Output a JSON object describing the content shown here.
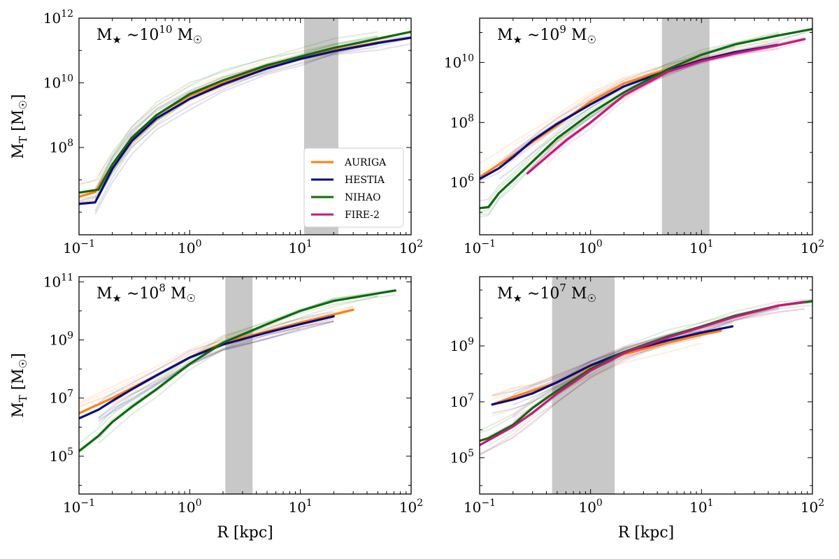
{
  "chart_data": [
    {
      "type": "line",
      "panel": "top-left",
      "title_prefix": "M",
      "title_exp": "10",
      "xlabel": "",
      "ylabel": "M",
      "ylabel_sub": "T",
      "ylabel_unit": "[M",
      "xscale": "log",
      "yscale": "log",
      "xlim": [
        0.1,
        100
      ],
      "ylim": [
        200000,
        1000000000000
      ],
      "x_ticks": [
        {
          "base": "10",
          "exp": "−1",
          "value": 0.1
        },
        {
          "base": "10",
          "exp": "0",
          "value": 1
        },
        {
          "base": "10",
          "exp": "1",
          "value": 10
        },
        {
          "base": "10",
          "exp": "2",
          "value": 100
        }
      ],
      "y_ticks": [
        {
          "base": "10",
          "exp": "8",
          "value": 100000000
        },
        {
          "base": "10",
          "exp": "10",
          "value": 10000000000
        },
        {
          "base": "10",
          "exp": "12",
          "value": 1000000000000
        }
      ],
      "band": [
        10.8,
        22
      ],
      "legend": {
        "position": "lower-right",
        "entries": [
          "AURIGA",
          "HESTIA",
          "NIHAO",
          "FIRE-2"
        ]
      },
      "series": [
        {
          "name": "AURIGA",
          "color": "#ff7f0e",
          "x": [
            0.1,
            0.14,
            0.2,
            0.3,
            0.5,
            1,
            2,
            5,
            10,
            20,
            50,
            100
          ],
          "y": [
            3000000,
            4200000,
            30000000,
            200000000,
            1000000000,
            4000000000,
            10000000000,
            32000000000,
            60000000000,
            100000000000,
            180000000000,
            250000000000
          ]
        },
        {
          "name": "HESTIA",
          "color": "#0a0a82",
          "x": [
            0.1,
            0.14,
            0.2,
            0.3,
            0.5,
            1,
            2,
            5,
            10,
            20,
            50,
            100
          ],
          "y": [
            1800000,
            2000000,
            22000000,
            160000000,
            800000000,
            3200000000,
            9000000000,
            28000000000,
            55000000000,
            95000000000,
            170000000000,
            250000000000
          ]
        },
        {
          "name": "NIHAO",
          "color": "#0b6b0b",
          "x": [
            0.1,
            0.15,
            0.2,
            0.3,
            0.5,
            1,
            2,
            5,
            10,
            20,
            50,
            100
          ],
          "y": [
            4000000,
            5000000,
            30000000,
            200000000,
            1000000000,
            4500000000,
            12000000000,
            35000000000,
            65000000000,
            120000000000,
            230000000000,
            380000000000
          ]
        }
      ]
    },
    {
      "type": "line",
      "panel": "top-right",
      "title_prefix": "M",
      "title_exp": "9",
      "xlabel": "",
      "ylabel": "",
      "xscale": "log",
      "yscale": "log",
      "xlim": [
        0.1,
        100
      ],
      "ylim": [
        18000,
        300000000000
      ],
      "x_ticks": [
        {
          "base": "10",
          "exp": "−1",
          "value": 0.1
        },
        {
          "base": "10",
          "exp": "0",
          "value": 1
        },
        {
          "base": "10",
          "exp": "1",
          "value": 10
        },
        {
          "base": "10",
          "exp": "2",
          "value": 100
        }
      ],
      "y_ticks": [
        {
          "base": "10",
          "exp": "6",
          "value": 1000000
        },
        {
          "base": "10",
          "exp": "8",
          "value": 100000000
        },
        {
          "base": "10",
          "exp": "10",
          "value": 10000000000
        }
      ],
      "band": [
        4.4,
        11.8
      ],
      "series": [
        {
          "name": "AURIGA",
          "color": "#ff7f0e",
          "x": [
            0.1,
            0.2,
            0.5,
            1,
            2,
            5,
            10,
            20,
            40
          ],
          "y": [
            1500000,
            8000000,
            80000000,
            500000000,
            2000000000,
            6000000000,
            12000000000,
            22000000000,
            32000000000
          ]
        },
        {
          "name": "HESTIA",
          "color": "#0a0a82",
          "x": [
            0.1,
            0.15,
            0.2,
            0.3,
            0.5,
            1,
            2,
            5,
            10,
            20,
            48
          ],
          "y": [
            1300000,
            3000000,
            7000000,
            25000000,
            90000000,
            400000000,
            1600000000,
            5500000000,
            12000000000,
            22000000000,
            38000000000
          ]
        },
        {
          "name": "NIHAO",
          "color": "#0b6b0b",
          "x": [
            0.1,
            0.12,
            0.15,
            0.2,
            0.3,
            0.5,
            1,
            2,
            5,
            10,
            20,
            50,
            100
          ],
          "y": [
            140000,
            150000,
            450000,
            1200000,
            5000000,
            30000000,
            200000000,
            1000000000,
            6000000000,
            18000000000,
            40000000000,
            80000000000,
            130000000000
          ]
        },
        {
          "name": "FIRE-2",
          "color": "#c8177c",
          "x": [
            0.27,
            0.4,
            0.6,
            1,
            2,
            5,
            10,
            20,
            50,
            85
          ],
          "y": [
            2000000,
            7000000,
            25000000,
            100000000,
            800000000,
            5000000000,
            11000000000,
            20000000000,
            38000000000,
            60000000000
          ]
        }
      ]
    },
    {
      "type": "line",
      "panel": "bottom-left",
      "title_prefix": "M",
      "title_exp": "8",
      "xlabel": "R [kpc]",
      "ylabel": "M",
      "ylabel_sub": "T",
      "ylabel_unit": "[M",
      "xscale": "log",
      "yscale": "log",
      "xlim": [
        0.1,
        100
      ],
      "ylim": [
        5000,
        150000000000
      ],
      "x_ticks": [
        {
          "base": "10",
          "exp": "−1",
          "value": 0.1
        },
        {
          "base": "10",
          "exp": "0",
          "value": 1
        },
        {
          "base": "10",
          "exp": "1",
          "value": 10
        },
        {
          "base": "10",
          "exp": "2",
          "value": 100
        }
      ],
      "y_ticks": [
        {
          "base": "10",
          "exp": "5",
          "value": 100000
        },
        {
          "base": "10",
          "exp": "7",
          "value": 10000000
        },
        {
          "base": "10",
          "exp": "9",
          "value": 1000000000
        },
        {
          "base": "10",
          "exp": "11",
          "value": 100000000000
        }
      ],
      "band": [
        2.1,
        3.7
      ],
      "series": [
        {
          "name": "AURIGA",
          "color": "#ff7f0e",
          "x": [
            0.1,
            0.2,
            0.5,
            1,
            2,
            5,
            10,
            20,
            30
          ],
          "y": [
            3000000,
            10000000,
            60000000,
            250000000,
            800000000,
            2000000000,
            4000000000,
            7500000000,
            11000000000
          ]
        },
        {
          "name": "HESTIA",
          "color": "#0a0a82",
          "x": [
            0.1,
            0.15,
            0.2,
            0.3,
            0.5,
            1,
            2,
            5,
            10,
            20
          ],
          "y": [
            2000000,
            4000000,
            8000000,
            20000000,
            60000000,
            250000000,
            700000000,
            1800000000,
            3500000000,
            6500000000
          ]
        },
        {
          "name": "NIHAO",
          "color": "#0b6b0b",
          "x": [
            0.1,
            0.15,
            0.2,
            0.3,
            0.5,
            1,
            2,
            5,
            10,
            20,
            50,
            72
          ],
          "y": [
            150000,
            500000,
            1500000,
            5000000,
            20000000,
            150000000,
            800000000,
            3500000000,
            10000000000,
            22000000000,
            40000000000,
            50000000000
          ]
        }
      ]
    },
    {
      "type": "line",
      "panel": "bottom-right",
      "title_prefix": "M",
      "title_exp": "7",
      "xlabel": "R [kpc]",
      "ylabel": "",
      "xscale": "log",
      "yscale": "log",
      "xlim": [
        0.1,
        100
      ],
      "ylim": [
        5000,
        300000000000
      ],
      "x_ticks": [
        {
          "base": "10",
          "exp": "−1",
          "value": 0.1
        },
        {
          "base": "10",
          "exp": "0",
          "value": 1
        },
        {
          "base": "10",
          "exp": "1",
          "value": 10
        },
        {
          "base": "10",
          "exp": "2",
          "value": 100
        }
      ],
      "y_ticks": [
        {
          "base": "10",
          "exp": "5",
          "value": 100000
        },
        {
          "base": "10",
          "exp": "7",
          "value": 10000000
        },
        {
          "base": "10",
          "exp": "9",
          "value": 1000000000
        }
      ],
      "band": [
        0.45,
        1.65
      ],
      "series": [
        {
          "name": "AURIGA",
          "color": "#ff7f0e",
          "x": [
            0.13,
            0.2,
            0.3,
            0.5,
            1,
            2,
            5,
            10,
            15
          ],
          "y": [
            8000000,
            15000000,
            25000000,
            50000000,
            180000000,
            500000000,
            1300000000,
            2500000000,
            3500000000
          ]
        },
        {
          "name": "HESTIA",
          "color": "#0a0a82",
          "x": [
            0.13,
            0.2,
            0.3,
            0.5,
            1,
            2,
            5,
            10,
            19
          ],
          "y": [
            8000000,
            12000000,
            20000000,
            50000000,
            200000000,
            600000000,
            1600000000,
            3000000000,
            5000000000
          ]
        },
        {
          "name": "NIHAO",
          "color": "#0b6b0b",
          "x": [
            0.1,
            0.12,
            0.2,
            0.3,
            0.5,
            1,
            2,
            5,
            10,
            20,
            50,
            100
          ],
          "y": [
            400000,
            500000,
            1500000,
            6000000,
            25000000,
            150000000,
            600000000,
            2200000000,
            5000000000,
            12000000000,
            28000000000,
            40000000000
          ]
        },
        {
          "name": "FIRE-2",
          "color": "#c8177c",
          "x": [
            0.1,
            0.2,
            0.3,
            0.5,
            1,
            2,
            5,
            10,
            20,
            50,
            85
          ],
          "y": [
            280000,
            1300000,
            4000000,
            20000000,
            130000000,
            550000000,
            2000000000,
            4700000000,
            11000000000,
            28000000000,
            38000000000
          ]
        }
      ]
    }
  ]
}
